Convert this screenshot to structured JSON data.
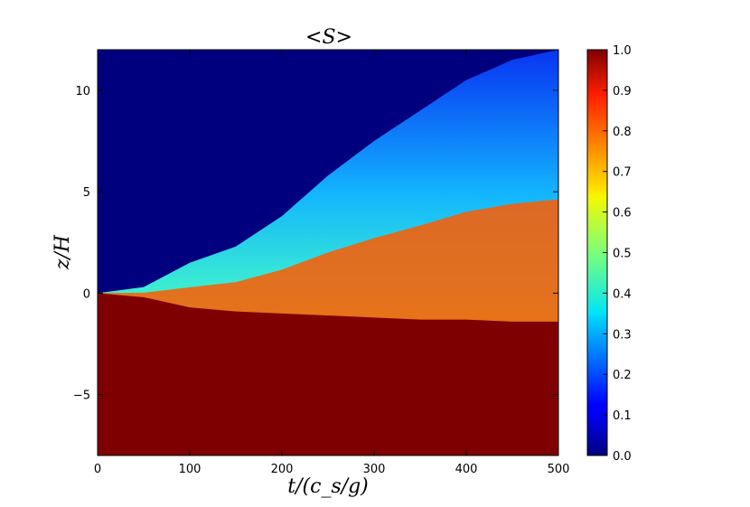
{
  "chart_data": {
    "type": "heatmap",
    "title": "<S>",
    "xlabel": "t/(c_s/g)",
    "ylabel": "z/H",
    "xlim": [
      0,
      500
    ],
    "ylim": [
      -8,
      12
    ],
    "x_ticks": [
      0,
      100,
      200,
      300,
      400,
      500
    ],
    "x_tick_labels": [
      "0",
      "100",
      "200",
      "300",
      "400",
      "500"
    ],
    "y_ticks": [
      -5,
      0,
      5,
      10
    ],
    "y_tick_labels": [
      "−5",
      "0",
      "5",
      "10"
    ],
    "colormap": "jet",
    "colorbar": {
      "range": [
        0,
        1
      ],
      "ticks": [
        0,
        0.1,
        0.2,
        0.3,
        0.4,
        0.5,
        0.6,
        0.7,
        0.8,
        0.9,
        1.0
      ],
      "tick_labels": [
        "0.0",
        "0.1",
        "0.2",
        "0.3",
        "0.4",
        "0.5",
        "0.6",
        "0.7",
        "0.8",
        "0.9",
        "1.0"
      ]
    },
    "field_description_points": [
      {
        "t": 0,
        "upper_front_z": 0.0,
        "lower_front_z": 0.0
      },
      {
        "t": 50,
        "upper_front_z": 0.3,
        "lower_front_z": -0.2
      },
      {
        "t": 100,
        "upper_front_z": 1.5,
        "lower_front_z": -0.7
      },
      {
        "t": 150,
        "upper_front_z": 2.3,
        "lower_front_z": -0.9
      },
      {
        "t": 200,
        "upper_front_z": 3.8,
        "lower_front_z": -1.0
      },
      {
        "t": 250,
        "upper_front_z": 5.8,
        "lower_front_z": -1.1
      },
      {
        "t": 300,
        "upper_front_z": 7.5,
        "lower_front_z": -1.2
      },
      {
        "t": 350,
        "upper_front_z": 9.0,
        "lower_front_z": -1.3
      },
      {
        "t": 400,
        "upper_front_z": 10.5,
        "lower_front_z": -1.3
      },
      {
        "t": 450,
        "upper_front_z": 11.5,
        "lower_front_z": -1.4
      },
      {
        "t": 500,
        "upper_front_z": 12.0,
        "lower_front_z": -1.4
      }
    ]
  }
}
